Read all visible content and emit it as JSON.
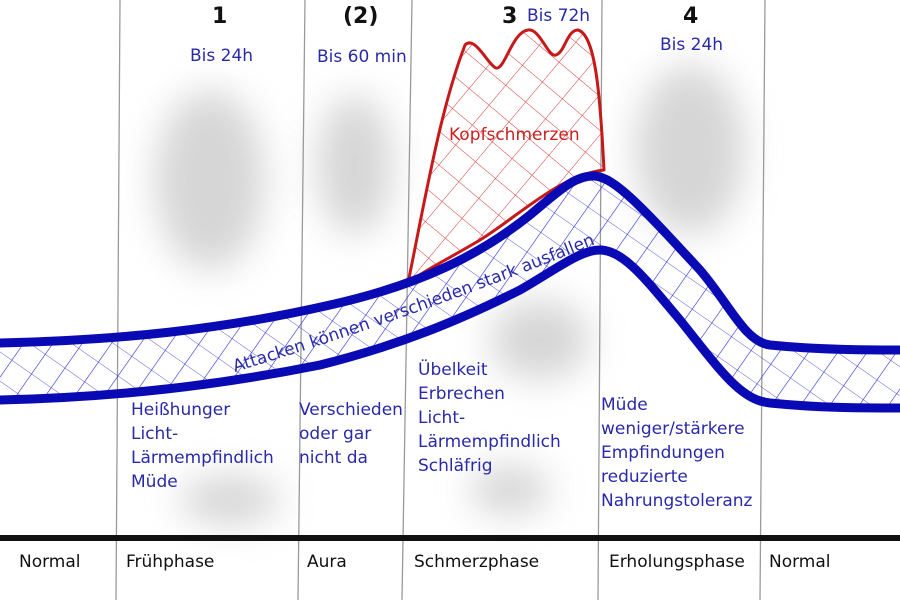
{
  "colors": {
    "band_blue": "#0a0ab4",
    "hatch_blue": "#2a2ad0",
    "headache_red": "#c61a1a",
    "text_blue": "#2a2aa8",
    "divider_gray": "#9a9a9a",
    "blur_gray": "#cfcfcf"
  },
  "phases": [
    {
      "number": "",
      "duration": "",
      "name": "Normal",
      "symptoms": []
    },
    {
      "number": "1",
      "duration": "Bis 24h",
      "name": "Frühphase",
      "symptoms": [
        "Heißhunger",
        "Licht-",
        "Lärmempfindlich",
        "Müde"
      ]
    },
    {
      "number": "(2)",
      "duration": "Bis 60 min",
      "name": "Aura",
      "symptoms": [
        "Verschieden",
        "oder gar",
        "nicht da"
      ]
    },
    {
      "number": "3",
      "duration": "Bis 72h",
      "name": "Schmerzphase",
      "symptoms": [
        "Übelkeit",
        "Erbrechen",
        "Licht-",
        "Lärmempfindlich",
        "Schläfrig"
      ]
    },
    {
      "number": "4",
      "duration": "Bis 24h",
      "name": "Erholungsphase",
      "symptoms": [
        "Müde",
        "weniger/stärkere",
        "Empfindungen",
        "reduzierte",
        "Nahrungstoleranz"
      ]
    },
    {
      "number": "",
      "duration": "",
      "name": "Normal",
      "symptoms": []
    }
  ],
  "headache_label": "Kopfschmerzen",
  "band_label": "Attacken können verschieden stark ausfallen"
}
